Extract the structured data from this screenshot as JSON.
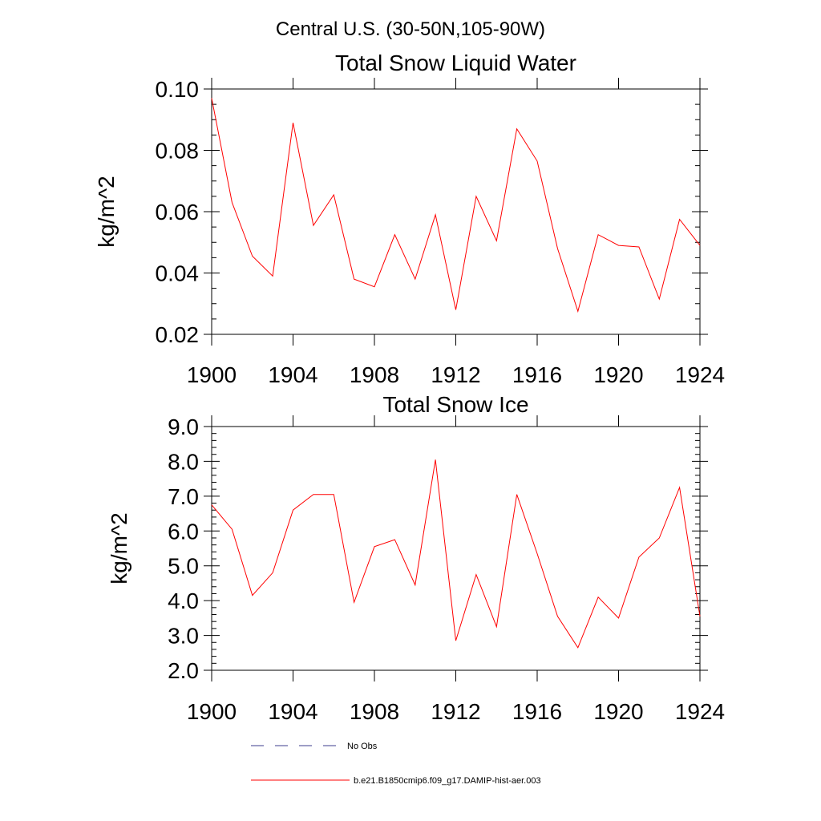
{
  "figure": {
    "region_title": "Central U.S. (30-50N,105-90W)"
  },
  "chart_data": [
    {
      "type": "line",
      "title": "Total Snow Liquid Water",
      "xlabel": "",
      "ylabel": "kg/m^2",
      "xlim": [
        1900,
        1924
      ],
      "ylim": [
        0.02,
        0.1
      ],
      "yticks": [
        0.02,
        0.04,
        0.06,
        0.08,
        0.1
      ],
      "ytick_labels": [
        "0.02",
        "0.04",
        "0.06",
        "0.08",
        "0.10"
      ],
      "xticks": [
        1900,
        1904,
        1908,
        1912,
        1916,
        1920,
        1924
      ],
      "xtick_labels": [
        "1900",
        "1904",
        "1908",
        "1912",
        "1916",
        "1920",
        "1924"
      ],
      "grid": false,
      "series": [
        {
          "name": "b.e21.B1850cmip6.f09_g17.DAMIP-hist-aer.003",
          "color": "#ff0000",
          "x": [
            1900,
            1901,
            1902,
            1903,
            1904,
            1905,
            1906,
            1907,
            1908,
            1909,
            1910,
            1911,
            1912,
            1913,
            1914,
            1915,
            1916,
            1917,
            1918,
            1919,
            1920,
            1921,
            1922,
            1923,
            1924
          ],
          "y": [
            0.097,
            0.063,
            0.0455,
            0.039,
            0.089,
            0.0555,
            0.0655,
            0.038,
            0.0355,
            0.0525,
            0.038,
            0.059,
            0.028,
            0.065,
            0.0505,
            0.087,
            0.0765,
            0.048,
            0.0275,
            0.0525,
            0.049,
            0.0485,
            0.0315,
            0.0575,
            0.049
          ]
        }
      ]
    },
    {
      "type": "line",
      "title": "Total Snow Ice",
      "xlabel": "",
      "ylabel": "kg/m^2",
      "xlim": [
        1900,
        1924
      ],
      "ylim": [
        2.0,
        9.0
      ],
      "yticks": [
        2,
        3,
        4,
        5,
        6,
        7,
        8,
        9
      ],
      "ytick_labels": [
        "2.0",
        "3.0",
        "4.0",
        "5.0",
        "6.0",
        "7.0",
        "8.0",
        "9.0"
      ],
      "xticks": [
        1900,
        1904,
        1908,
        1912,
        1916,
        1920,
        1924
      ],
      "xtick_labels": [
        "1900",
        "1904",
        "1908",
        "1912",
        "1916",
        "1920",
        "1924"
      ],
      "grid": false,
      "series": [
        {
          "name": "b.e21.B1850cmip6.f09_g17.DAMIP-hist-aer.003",
          "color": "#ff0000",
          "x": [
            1900,
            1901,
            1902,
            1903,
            1904,
            1905,
            1906,
            1907,
            1908,
            1909,
            1910,
            1911,
            1912,
            1913,
            1914,
            1915,
            1916,
            1917,
            1918,
            1919,
            1920,
            1921,
            1922,
            1923,
            1924
          ],
          "y": [
            6.75,
            6.05,
            4.15,
            4.8,
            6.6,
            7.05,
            7.05,
            3.95,
            5.55,
            5.75,
            4.45,
            8.05,
            2.85,
            4.75,
            3.25,
            7.05,
            5.35,
            3.55,
            2.65,
            4.1,
            3.5,
            5.25,
            5.8,
            7.25,
            3.55
          ]
        }
      ]
    }
  ],
  "legend": {
    "items": [
      {
        "label": "No Obs",
        "color": "#3c3c8c",
        "style": "dashed"
      },
      {
        "label": "b.e21.B1850cmip6.f09_g17.DAMIP-hist-aer.003",
        "color": "#ff0000",
        "style": "solid"
      }
    ]
  }
}
